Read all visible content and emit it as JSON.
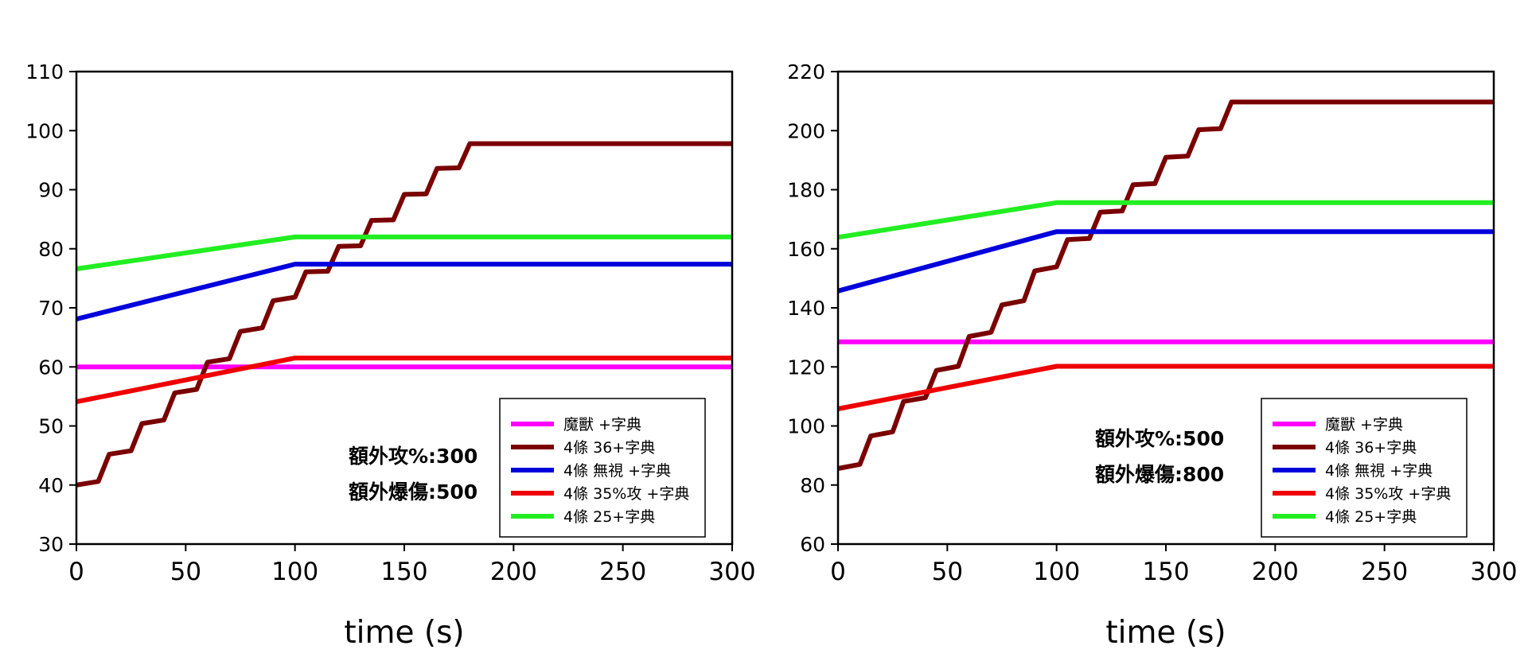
{
  "chart_data": [
    {
      "type": "line",
      "xlabel": "time (s)",
      "ylabel": "",
      "xlim": [
        0,
        300
      ],
      "ylim": [
        30,
        110
      ],
      "xticks": [
        "0",
        "50",
        "100",
        "150",
        "200",
        "250",
        "300"
      ],
      "yticks": [
        "30",
        "40",
        "50",
        "60",
        "70",
        "80",
        "90",
        "100",
        "110"
      ],
      "grid": false,
      "legend_position": "bottom-right",
      "annotations": [
        "額外攻%:300",
        "額外爆傷:500"
      ],
      "series": [
        {
          "name": "魔獸 +字典",
          "color": "#ff00ff",
          "points": [
            [
              0,
              60
            ],
            [
              300,
              60
            ]
          ]
        },
        {
          "name": "4條 36+字典",
          "color": "#7a0000",
          "points": [
            [
              0,
              40
            ],
            [
              10,
              40.6
            ],
            [
              15,
              45.2
            ],
            [
              25,
              45.8
            ],
            [
              30,
              50.4
            ],
            [
              40,
              51
            ],
            [
              45,
              55.6
            ],
            [
              55,
              56.2
            ],
            [
              60,
              60.8
            ],
            [
              70,
              61.4
            ],
            [
              75,
              66
            ],
            [
              85,
              66.6
            ],
            [
              90,
              71.2
            ],
            [
              100,
              71.8
            ],
            [
              105,
              76.1
            ],
            [
              115,
              76.2
            ],
            [
              120,
              80.4
            ],
            [
              130,
              80.5
            ],
            [
              135,
              84.8
            ],
            [
              145,
              84.9
            ],
            [
              150,
              89.2
            ],
            [
              160,
              89.3
            ],
            [
              165,
              93.6
            ],
            [
              175,
              93.7
            ],
            [
              180,
              97.8
            ],
            [
              300,
              97.8
            ]
          ]
        },
        {
          "name": "4條 無視 +字典",
          "color": "#0000dd",
          "points": [
            [
              0,
              68.1
            ],
            [
              100,
              77.4
            ],
            [
              300,
              77.4
            ]
          ]
        },
        {
          "name": "4條 35%攻 +字典",
          "color": "#ee0000",
          "points": [
            [
              0,
              54.1
            ],
            [
              100,
              61.5
            ],
            [
              300,
              61.5
            ]
          ]
        },
        {
          "name": "4條 25+字典",
          "color": "#22ee22",
          "points": [
            [
              0,
              76.6
            ],
            [
              100,
              82
            ],
            [
              300,
              82
            ]
          ]
        }
      ]
    },
    {
      "type": "line",
      "xlabel": "time (s)",
      "ylabel": "",
      "xlim": [
        0,
        300
      ],
      "ylim": [
        60,
        220
      ],
      "xticks": [
        "0",
        "50",
        "100",
        "150",
        "200",
        "250",
        "300"
      ],
      "yticks": [
        "60",
        "80",
        "100",
        "120",
        "140",
        "160",
        "180",
        "200",
        "220"
      ],
      "grid": false,
      "legend_position": "bottom-right",
      "annotations": [
        "額外攻%:500",
        "額外爆傷:800"
      ],
      "series": [
        {
          "name": "魔獸 +字典",
          "color": "#ff00ff",
          "points": [
            [
              0,
              128.5
            ],
            [
              300,
              128.5
            ]
          ]
        },
        {
          "name": "4條 36+字典",
          "color": "#7a0000",
          "points": [
            [
              0,
              85.6
            ],
            [
              10,
              87
            ],
            [
              15,
              96.6
            ],
            [
              25,
              98
            ],
            [
              30,
              108.3
            ],
            [
              40,
              109.6
            ],
            [
              45,
              118.8
            ],
            [
              55,
              120.2
            ],
            [
              60,
              130.3
            ],
            [
              70,
              131.7
            ],
            [
              75,
              141
            ],
            [
              85,
              142.4
            ],
            [
              90,
              152.5
            ],
            [
              100,
              153.9
            ],
            [
              105,
              163.1
            ],
            [
              115,
              163.5
            ],
            [
              120,
              172.4
            ],
            [
              130,
              172.8
            ],
            [
              135,
              181.7
            ],
            [
              145,
              182.1
            ],
            [
              150,
              191
            ],
            [
              160,
              191.4
            ],
            [
              165,
              200.3
            ],
            [
              175,
              200.7
            ],
            [
              180,
              209.7
            ],
            [
              300,
              209.7
            ]
          ]
        },
        {
          "name": "4條 無視 +字典",
          "color": "#0000dd",
          "points": [
            [
              0,
              145.7
            ],
            [
              100,
              165.8
            ],
            [
              300,
              165.8
            ]
          ]
        },
        {
          "name": "4條 35%攻 +字典",
          "color": "#ee0000",
          "points": [
            [
              0,
              105.8
            ],
            [
              100,
              120.2
            ],
            [
              300,
              120.2
            ]
          ]
        },
        {
          "name": "4條 25+字典",
          "color": "#22ee22",
          "points": [
            [
              0,
              163.9
            ],
            [
              100,
              175.6
            ],
            [
              300,
              175.6
            ]
          ]
        }
      ]
    }
  ]
}
